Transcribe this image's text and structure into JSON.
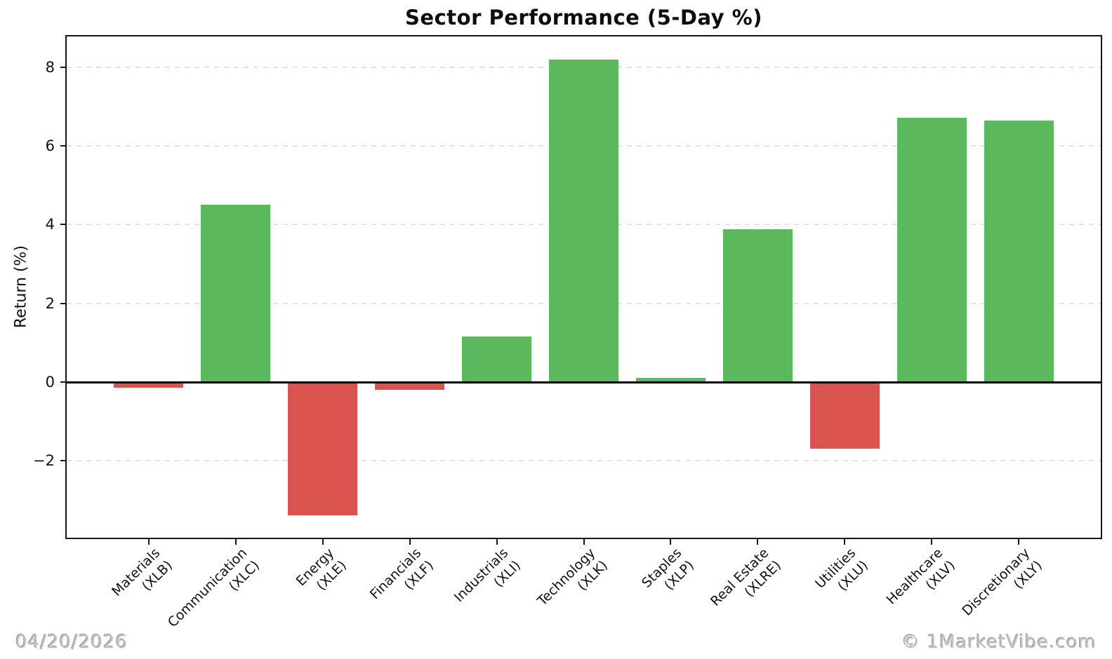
{
  "chart_data": {
    "type": "bar",
    "title": "Sector Performance (5-Day %)",
    "ylabel": "Return (%)",
    "xlabel": "",
    "categories": [
      "Materials\n(XLB)",
      "Communication\n(XLC)",
      "Energy\n(XLE)",
      "Financials\n(XLF)",
      "Industrials\n(XLI)",
      "Technology\n(XLK)",
      "Staples\n(XLP)",
      "Real Estate\n(XLRE)",
      "Utilities\n(XLU)",
      "Healthcare\n(XLV)",
      "Discretionary\n(XLY)"
    ],
    "values": [
      -0.15,
      4.5,
      -3.38,
      -0.2,
      1.15,
      8.2,
      0.1,
      3.88,
      -1.7,
      6.72,
      6.65
    ],
    "yticks": [
      -2,
      0,
      2,
      4,
      6,
      8
    ],
    "ytick_labels": [
      "−2",
      "0",
      "2",
      "4",
      "6",
      "8"
    ],
    "ylim": [
      -3.96,
      8.78
    ],
    "grid": "horizontal-dashed",
    "legend_position": "none",
    "colors": {
      "positive": "#5cb85c",
      "negative": "#d9534f",
      "zero_line": "#000000",
      "grid": "#e2e2e2"
    }
  },
  "footer": {
    "date": "04/20/2026",
    "copyright": "© 1MarketVibe.com"
  }
}
